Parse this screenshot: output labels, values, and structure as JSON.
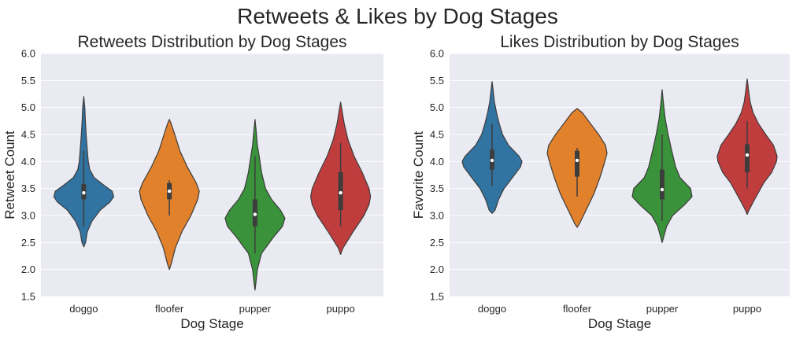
{
  "figure": {
    "title": "Retweets & Likes by Dog Stages",
    "background": "#ffffff",
    "axes_background": "#eaeaf2",
    "grid_color": "#ffffff"
  },
  "chart_data": [
    {
      "type": "violin",
      "title": "Retweets Distribution by Dog Stages",
      "xlabel": "Dog Stage",
      "ylabel": "Retweet Count",
      "categories": [
        "doggo",
        "floofer",
        "pupper",
        "puppo"
      ],
      "ylim": [
        1.5,
        6.0
      ],
      "yticks": [
        "1.5",
        "2.0",
        "2.5",
        "3.0",
        "3.5",
        "4.0",
        "4.5",
        "5.0",
        "5.5",
        "6.0"
      ],
      "grid": true,
      "series": [
        {
          "category": "doggo",
          "color": "#3274a1",
          "box": {
            "whisker_low": 2.8,
            "q1": 3.3,
            "median": 3.42,
            "q3": 3.58,
            "whisker_high": 4.2
          },
          "density": [
            [
              2.42,
              0.0
            ],
            [
              2.5,
              0.06
            ],
            [
              2.7,
              0.12
            ],
            [
              2.9,
              0.28
            ],
            [
              3.1,
              0.55
            ],
            [
              3.25,
              0.88
            ],
            [
              3.35,
              1.0
            ],
            [
              3.45,
              0.95
            ],
            [
              3.55,
              0.7
            ],
            [
              3.7,
              0.35
            ],
            [
              3.85,
              0.2
            ],
            [
              4.0,
              0.15
            ],
            [
              4.2,
              0.12
            ],
            [
              4.5,
              0.08
            ],
            [
              4.8,
              0.05
            ],
            [
              5.0,
              0.035
            ],
            [
              5.2,
              0.0
            ]
          ]
        },
        {
          "category": "floofer",
          "color": "#e1812c",
          "box": {
            "whisker_low": 3.0,
            "q1": 3.3,
            "median": 3.45,
            "q3": 3.6,
            "whisker_high": 3.65
          },
          "density": [
            [
              2.0,
              0.0
            ],
            [
              2.1,
              0.06
            ],
            [
              2.4,
              0.2
            ],
            [
              2.7,
              0.42
            ],
            [
              3.0,
              0.72
            ],
            [
              3.3,
              0.95
            ],
            [
              3.45,
              1.0
            ],
            [
              3.6,
              0.9
            ],
            [
              3.9,
              0.6
            ],
            [
              4.2,
              0.35
            ],
            [
              4.5,
              0.18
            ],
            [
              4.7,
              0.06
            ],
            [
              4.78,
              0.0
            ]
          ]
        },
        {
          "category": "pupper",
          "color": "#3a923a",
          "box": {
            "whisker_low": 2.3,
            "q1": 2.8,
            "median": 3.02,
            "q3": 3.3,
            "whisker_high": 4.1
          },
          "density": [
            [
              1.62,
              0.0
            ],
            [
              1.75,
              0.03
            ],
            [
              2.0,
              0.08
            ],
            [
              2.3,
              0.22
            ],
            [
              2.6,
              0.62
            ],
            [
              2.8,
              0.92
            ],
            [
              2.95,
              1.0
            ],
            [
              3.1,
              0.85
            ],
            [
              3.3,
              0.55
            ],
            [
              3.5,
              0.35
            ],
            [
              3.8,
              0.22
            ],
            [
              4.1,
              0.14
            ],
            [
              4.3,
              0.08
            ],
            [
              4.5,
              0.05
            ],
            [
              4.78,
              0.0
            ]
          ]
        },
        {
          "category": "puppo",
          "color": "#c03d3e",
          "box": {
            "whisker_low": 2.8,
            "q1": 3.1,
            "median": 3.42,
            "q3": 3.8,
            "whisker_high": 4.35
          },
          "density": [
            [
              2.28,
              0.0
            ],
            [
              2.4,
              0.08
            ],
            [
              2.7,
              0.42
            ],
            [
              3.0,
              0.78
            ],
            [
              3.2,
              0.95
            ],
            [
              3.35,
              1.0
            ],
            [
              3.5,
              0.95
            ],
            [
              3.8,
              0.72
            ],
            [
              4.1,
              0.45
            ],
            [
              4.4,
              0.25
            ],
            [
              4.7,
              0.12
            ],
            [
              4.9,
              0.06
            ],
            [
              5.1,
              0.0
            ]
          ]
        }
      ]
    },
    {
      "type": "violin",
      "title": "Likes Distribution by Dog Stages",
      "xlabel": "Dog Stage",
      "ylabel": "Favorite Count",
      "categories": [
        "doggo",
        "floofer",
        "pupper",
        "puppo"
      ],
      "ylim": [
        1.5,
        6.0
      ],
      "yticks": [
        "1.5",
        "2.0",
        "2.5",
        "3.0",
        "3.5",
        "4.0",
        "4.5",
        "5.0",
        "5.5",
        "6.0"
      ],
      "grid": true,
      "series": [
        {
          "category": "doggo",
          "color": "#3274a1",
          "box": {
            "whisker_low": 3.55,
            "q1": 3.85,
            "median": 4.02,
            "q3": 4.22,
            "whisker_high": 4.7
          },
          "density": [
            [
              3.04,
              0.0
            ],
            [
              3.1,
              0.1
            ],
            [
              3.3,
              0.22
            ],
            [
              3.5,
              0.4
            ],
            [
              3.7,
              0.68
            ],
            [
              3.9,
              0.95
            ],
            [
              4.0,
              1.0
            ],
            [
              4.1,
              0.9
            ],
            [
              4.3,
              0.55
            ],
            [
              4.5,
              0.35
            ],
            [
              4.7,
              0.24
            ],
            [
              4.9,
              0.15
            ],
            [
              5.1,
              0.08
            ],
            [
              5.3,
              0.04
            ],
            [
              5.48,
              0.0
            ]
          ]
        },
        {
          "category": "floofer",
          "color": "#e1812c",
          "box": {
            "whisker_low": 3.35,
            "q1": 3.72,
            "median": 4.02,
            "q3": 4.2,
            "whisker_high": 4.25
          },
          "density": [
            [
              2.78,
              0.0
            ],
            [
              2.85,
              0.08
            ],
            [
              3.1,
              0.3
            ],
            [
              3.4,
              0.56
            ],
            [
              3.7,
              0.76
            ],
            [
              3.95,
              0.9
            ],
            [
              4.15,
              1.0
            ],
            [
              4.3,
              0.95
            ],
            [
              4.5,
              0.72
            ],
            [
              4.7,
              0.45
            ],
            [
              4.9,
              0.18
            ],
            [
              4.98,
              0.0
            ]
          ]
        },
        {
          "category": "pupper",
          "color": "#3a923a",
          "box": {
            "whisker_low": 2.9,
            "q1": 3.3,
            "median": 3.48,
            "q3": 3.85,
            "whisker_high": 4.5
          },
          "density": [
            [
              2.5,
              0.0
            ],
            [
              2.6,
              0.05
            ],
            [
              2.8,
              0.15
            ],
            [
              3.0,
              0.35
            ],
            [
              3.2,
              0.75
            ],
            [
              3.35,
              1.0
            ],
            [
              3.5,
              0.95
            ],
            [
              3.7,
              0.6
            ],
            [
              3.9,
              0.45
            ],
            [
              4.2,
              0.32
            ],
            [
              4.5,
              0.2
            ],
            [
              4.8,
              0.1
            ],
            [
              5.1,
              0.04
            ],
            [
              5.33,
              0.0
            ]
          ]
        },
        {
          "category": "puppo",
          "color": "#c03d3e",
          "box": {
            "whisker_low": 3.5,
            "q1": 3.8,
            "median": 4.12,
            "q3": 4.32,
            "whisker_high": 4.75
          },
          "density": [
            [
              3.02,
              0.0
            ],
            [
              3.1,
              0.06
            ],
            [
              3.3,
              0.25
            ],
            [
              3.6,
              0.55
            ],
            [
              3.8,
              0.82
            ],
            [
              4.0,
              0.98
            ],
            [
              4.1,
              1.0
            ],
            [
              4.3,
              0.88
            ],
            [
              4.5,
              0.62
            ],
            [
              4.7,
              0.38
            ],
            [
              4.9,
              0.2
            ],
            [
              5.1,
              0.1
            ],
            [
              5.3,
              0.05
            ],
            [
              5.53,
              0.0
            ]
          ]
        }
      ]
    }
  ]
}
